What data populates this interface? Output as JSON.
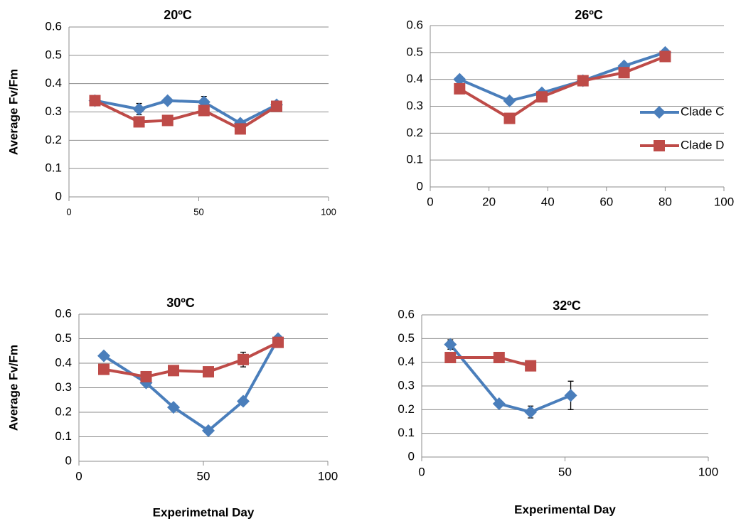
{
  "chart_data": [
    {
      "type": "line",
      "title": "20ºC",
      "y_label": "Average Fv/Fm",
      "x": [
        10,
        27,
        38,
        52,
        66,
        80
      ],
      "series": [
        {
          "color": "#4a7ebb",
          "marker": "diamond",
          "values": [
            0.34,
            0.31,
            0.34,
            0.335,
            0.26,
            0.325
          ],
          "errors": [
            null,
            0.02,
            null,
            0.02,
            null,
            null
          ]
        },
        {
          "color": "#be4b48",
          "marker": "square",
          "values": [
            0.34,
            0.265,
            0.27,
            0.305,
            0.24,
            0.32
          ]
        }
      ],
      "xlim": [
        0,
        100
      ],
      "xticks": [
        0,
        50,
        100
      ],
      "ylim": [
        0,
        0.6
      ],
      "yticks": [
        0,
        0.1,
        0.2,
        0.3,
        0.4,
        0.5,
        0.6
      ],
      "grid": true
    },
    {
      "type": "line",
      "title": "26ºC",
      "x": [
        10,
        27,
        38,
        52,
        66,
        80
      ],
      "series": [
        {
          "name": "Clade C",
          "color": "#4a7ebb",
          "marker": "diamond",
          "values": [
            0.4,
            0.32,
            0.35,
            0.395,
            0.45,
            0.5
          ]
        },
        {
          "name": "Clade D",
          "color": "#be4b48",
          "marker": "square",
          "values": [
            0.365,
            0.255,
            0.335,
            0.395,
            0.425,
            0.485
          ]
        }
      ],
      "xlim": [
        0,
        100
      ],
      "xticks": [
        0,
        20,
        40,
        60,
        80,
        100
      ],
      "ylim": [
        0,
        0.6
      ],
      "yticks": [
        0,
        0.1,
        0.2,
        0.3,
        0.4,
        0.5,
        0.6
      ],
      "grid": true,
      "legend": "right"
    },
    {
      "type": "line",
      "title": "30ºC",
      "y_label": "Average Fv/Fm",
      "x_label": "Experimetnal Day",
      "x": [
        10,
        27,
        38,
        52,
        66,
        80
      ],
      "series": [
        {
          "color": "#4a7ebb",
          "marker": "diamond",
          "values": [
            0.43,
            0.32,
            0.22,
            0.125,
            0.245,
            0.5
          ]
        },
        {
          "color": "#be4b48",
          "marker": "square",
          "values": [
            0.375,
            0.345,
            0.37,
            0.365,
            0.415,
            0.485
          ],
          "errors": [
            null,
            null,
            null,
            null,
            0.03,
            null
          ]
        }
      ],
      "xlim": [
        0,
        100
      ],
      "xticks": [
        0,
        50,
        100
      ],
      "ylim": [
        0,
        0.6
      ],
      "yticks": [
        0,
        0.1,
        0.2,
        0.3,
        0.4,
        0.5,
        0.6
      ],
      "grid": true
    },
    {
      "type": "line",
      "title": "32ºC",
      "x_label": "Experimental Day",
      "x": [
        10,
        27,
        38,
        52,
        66,
        80
      ],
      "series": [
        {
          "color": "#4a7ebb",
          "marker": "diamond",
          "values": [
            0.475,
            0.225,
            0.19,
            0.26,
            null,
            null
          ],
          "errors": [
            0.02,
            null,
            0.025,
            0.06,
            null,
            null
          ]
        },
        {
          "color": "#be4b48",
          "marker": "square",
          "values": [
            0.42,
            0.42,
            0.385,
            null,
            null,
            null
          ]
        }
      ],
      "xlim": [
        0,
        100
      ],
      "xticks": [
        0,
        50,
        100
      ],
      "ylim": [
        0,
        0.6
      ],
      "yticks": [
        0,
        0.1,
        0.2,
        0.3,
        0.4,
        0.5,
        0.6
      ],
      "grid": true
    }
  ]
}
